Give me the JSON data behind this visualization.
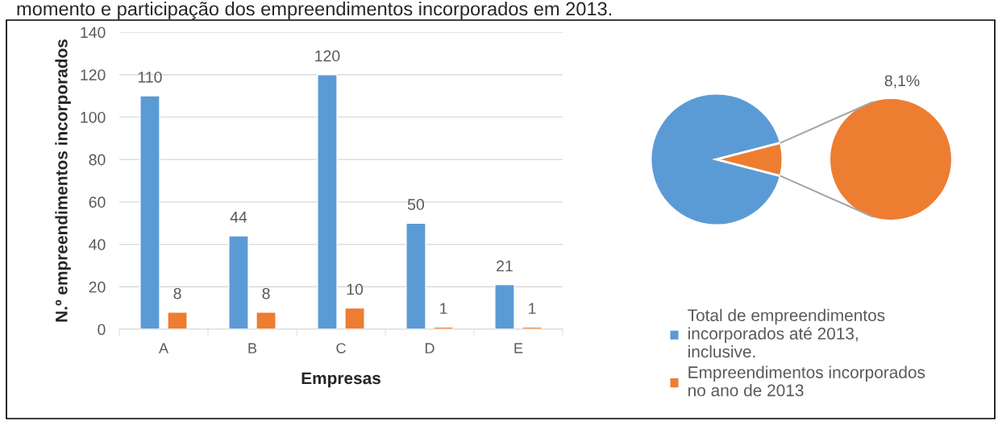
{
  "chart_data": [
    {
      "type": "bar",
      "annotations": [
        "momento e participação dos empreendimentos incorporados em 2013."
      ],
      "xlabel": "Empresas",
      "ylabel": "N.º empreendimentos incorporados",
      "categories": [
        "A",
        "B",
        "C",
        "D",
        "E"
      ],
      "series": [
        {
          "color": "#5b9bd5",
          "values": [
            110,
            44,
            120,
            50,
            21
          ]
        },
        {
          "color": "#ed7d31",
          "values": [
            8,
            8,
            10,
            1,
            1
          ]
        }
      ],
      "ylim": [
        0,
        140
      ],
      "yticks": [
        0,
        20,
        40,
        60,
        80,
        100,
        120,
        140
      ],
      "grid": "y",
      "data_labels": true,
      "legend": false
    },
    {
      "type": "pie",
      "categories": [
        "Total de empreendimentos incorporados até 2013, inclusive.",
        "Empreendimentos incorporados no ano de 2013"
      ],
      "values": [
        91.9,
        8.1
      ],
      "colors": [
        "#5b9bd5",
        "#ed7d31"
      ],
      "value_labels": [
        null,
        "8,1%"
      ],
      "legend": "bottom"
    }
  ]
}
